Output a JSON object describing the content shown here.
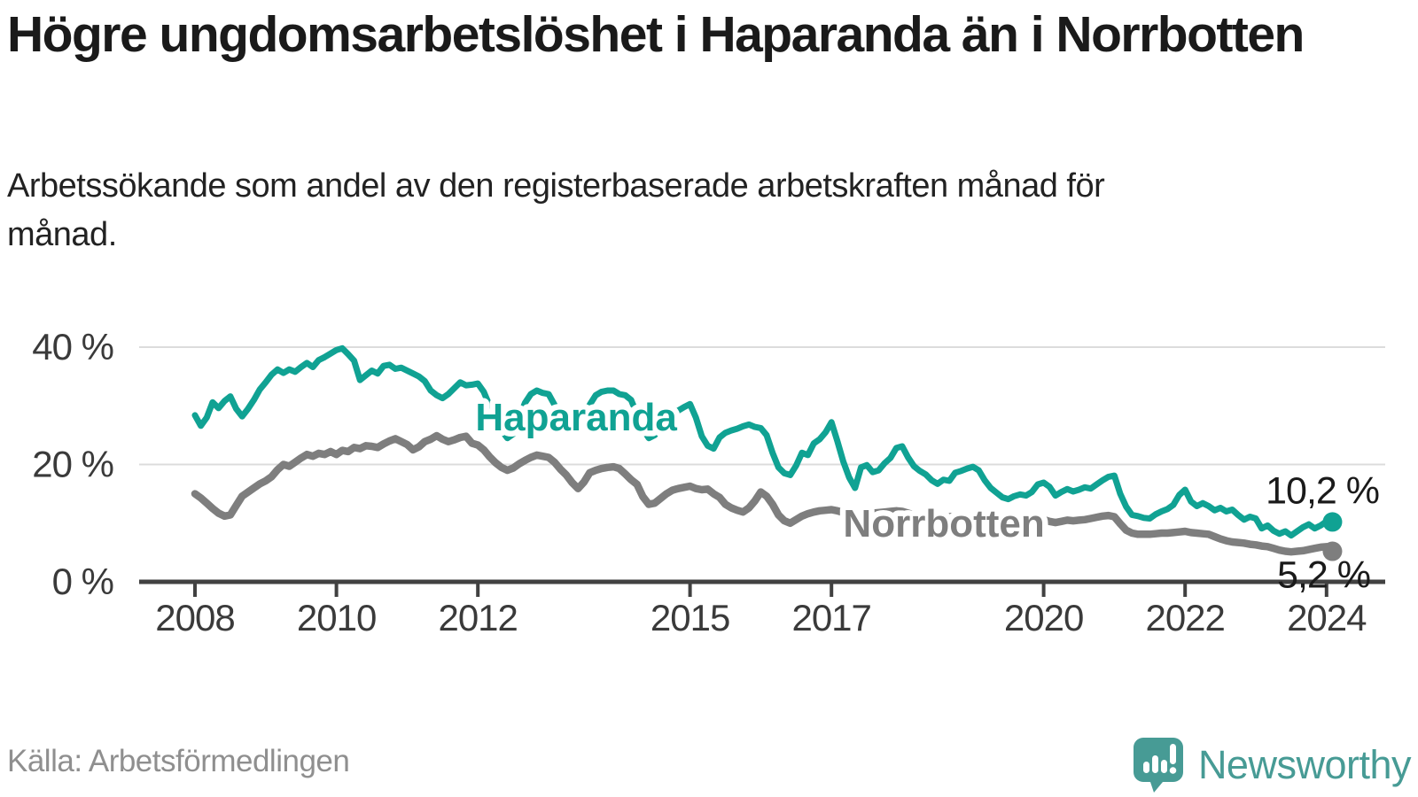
{
  "header": {
    "title": "Högre ungdomsarbetslöshet i Haparanda än i Norrbotten",
    "subtitle": "Arbetssökande som andel av den registerbaserade arbetskraften månad för månad."
  },
  "footer": {
    "source": "Källa: Arbetsförmedlingen",
    "brand": "Newsworthy"
  },
  "colors": {
    "haparanda": "#10a293",
    "norrbotten": "#7e7e7e",
    "axis_line": "#414141",
    "grid": "#dcdcdc",
    "axis_text": "#3a3a3a",
    "end_label": "#1a1a1a",
    "brand_teal": "#479b95"
  },
  "chart_data": {
    "type": "line",
    "title": "Högre ungdomsarbetslöshet i Haparanda än i Norrbotten",
    "subtitle": "Arbetssökande som andel av den registerbaserade arbetskraften månad för månad.",
    "unit": "%",
    "grid": true,
    "ylim": [
      0,
      40
    ],
    "xlim": [
      2008,
      2024.25
    ],
    "y_ticks": [
      {
        "label": "40 %",
        "value": 40
      },
      {
        "label": "20 %",
        "value": 20
      },
      {
        "label": "0 %",
        "value": 0
      }
    ],
    "x_ticks": [
      {
        "label": "2008",
        "year": 2008
      },
      {
        "label": "2010",
        "year": 2010
      },
      {
        "label": "2012",
        "year": 2012
      },
      {
        "label": "2015",
        "year": 2015
      },
      {
        "label": "2017",
        "year": 2017
      },
      {
        "label": "2020",
        "year": 2020
      },
      {
        "label": "2022",
        "year": 2022
      },
      {
        "label": "2024",
        "year": 2024
      }
    ],
    "x_start_year": 2008,
    "points_per_year": 12,
    "series": [
      {
        "name": "Norrbotten",
        "color_key": "norrbotten",
        "end_label": "5,2 %",
        "end_value": 5.2,
        "values": [
          15.0,
          14.3,
          13.4,
          12.5,
          11.7,
          11.2,
          11.4,
          13.0,
          14.6,
          15.3,
          16.0,
          16.7,
          17.2,
          17.9,
          19.1,
          20.0,
          19.7,
          20.4,
          21.1,
          21.7,
          21.4,
          21.9,
          21.7,
          22.2,
          21.7,
          22.4,
          22.2,
          22.9,
          22.7,
          23.2,
          23.1,
          22.9,
          23.5,
          24.0,
          24.4,
          23.9,
          23.4,
          22.5,
          23.0,
          23.9,
          24.3,
          24.9,
          24.3,
          23.9,
          24.2,
          24.6,
          24.8,
          23.6,
          23.3,
          22.5,
          21.3,
          20.3,
          19.5,
          19.0,
          19.4,
          20.1,
          20.7,
          21.2,
          21.6,
          21.4,
          21.2,
          20.4,
          19.2,
          18.2,
          16.9,
          15.9,
          17.0,
          18.6,
          19.0,
          19.3,
          19.5,
          19.6,
          19.3,
          18.4,
          17.4,
          16.6,
          14.5,
          13.2,
          13.4,
          14.2,
          15.0,
          15.6,
          15.9,
          16.1,
          16.3,
          15.9,
          15.7,
          15.8,
          15.0,
          14.4,
          13.2,
          12.6,
          12.2,
          11.9,
          12.6,
          13.8,
          15.3,
          14.6,
          13.2,
          11.4,
          10.4,
          10.0,
          10.6,
          11.2,
          11.6,
          11.9,
          12.1,
          12.2,
          12.3,
          12.1,
          11.8,
          11.5,
          11.3,
          11.4,
          11.6,
          11.7,
          11.8,
          11.9,
          12.0,
          12.1,
          12.0,
          11.7,
          11.4,
          11.1,
          10.9,
          10.8,
          10.9,
          11.0,
          11.1,
          11.2,
          11.3,
          11.3,
          11.2,
          11.0,
          10.8,
          10.6,
          10.4,
          10.3,
          10.4,
          10.5,
          10.6,
          10.6,
          10.7,
          10.7,
          10.6,
          10.3,
          10.1,
          10.3,
          10.5,
          10.4,
          10.5,
          10.6,
          10.8,
          11.0,
          11.2,
          11.3,
          11.1,
          9.9,
          8.8,
          8.3,
          8.1,
          8.1,
          8.1,
          8.2,
          8.3,
          8.3,
          8.4,
          8.5,
          8.6,
          8.4,
          8.3,
          8.2,
          8.1,
          7.7,
          7.3,
          7.0,
          6.8,
          6.7,
          6.6,
          6.4,
          6.3,
          6.1,
          6.0,
          5.7,
          5.4,
          5.2,
          5.1,
          5.2,
          5.3,
          5.5,
          5.7,
          5.9,
          6.0,
          5.2
        ]
      },
      {
        "name": "Haparanda",
        "color_key": "haparanda",
        "end_label": "10,2 %",
        "end_value": 10.2,
        "values": [
          28.4,
          26.6,
          28.0,
          30.6,
          29.6,
          30.8,
          31.6,
          29.5,
          28.2,
          29.5,
          31.0,
          32.8,
          34.0,
          35.3,
          36.2,
          35.6,
          36.2,
          35.8,
          36.6,
          37.3,
          36.6,
          37.8,
          38.3,
          38.9,
          39.5,
          39.8,
          38.8,
          37.7,
          34.4,
          35.2,
          36.0,
          35.5,
          36.8,
          37.0,
          36.3,
          36.5,
          36.0,
          35.5,
          35.0,
          34.2,
          32.6,
          31.8,
          31.3,
          32.0,
          33.0,
          34.0,
          33.5,
          33.6,
          33.8,
          32.4,
          30.0,
          27.5,
          25.8,
          24.5,
          25.2,
          28.0,
          30.5,
          32.0,
          32.6,
          32.2,
          32.0,
          30.2,
          28.3,
          27.0,
          26.3,
          27.2,
          28.4,
          30.2,
          31.8,
          32.4,
          32.6,
          32.6,
          32.0,
          31.8,
          31.0,
          28.5,
          26.0,
          24.5,
          25.0,
          26.5,
          27.8,
          28.8,
          29.2,
          29.8,
          30.3,
          28.0,
          24.8,
          23.2,
          22.7,
          24.6,
          25.4,
          25.8,
          26.1,
          26.5,
          26.8,
          26.4,
          26.2,
          25.0,
          22.0,
          19.5,
          18.5,
          18.2,
          19.8,
          22.0,
          21.6,
          23.6,
          24.3,
          25.5,
          27.2,
          24.0,
          20.5,
          17.8,
          16.0,
          19.5,
          19.9,
          18.7,
          19.0,
          20.2,
          21.1,
          22.8,
          23.1,
          21.2,
          19.7,
          18.9,
          18.3,
          17.3,
          16.7,
          17.4,
          17.2,
          18.6,
          18.9,
          19.3,
          19.6,
          19.0,
          17.3,
          16.0,
          15.2,
          14.4,
          14.1,
          14.6,
          14.9,
          14.7,
          15.3,
          16.6,
          16.9,
          16.2,
          14.7,
          15.3,
          15.8,
          15.4,
          15.7,
          16.1,
          15.9,
          16.6,
          17.3,
          17.9,
          18.1,
          15.0,
          12.8,
          11.4,
          11.2,
          10.9,
          10.8,
          11.5,
          12.0,
          12.4,
          13.1,
          14.8,
          15.7,
          13.7,
          12.9,
          13.4,
          12.9,
          12.2,
          12.6,
          12.0,
          12.3,
          11.4,
          10.6,
          11.1,
          10.8,
          9.1,
          9.6,
          8.7,
          8.2,
          8.6,
          7.9,
          8.6,
          9.3,
          9.8,
          9.1,
          9.6,
          10.3,
          10.2
        ]
      }
    ],
    "series_labels": [
      {
        "text": "Haparanda",
        "color_key": "haparanda",
        "year": 2013.39,
        "value": 25.8
      },
      {
        "text": "Norrbotten",
        "color_key": "norrbotten",
        "year": 2018.59,
        "value": 7.7
      }
    ],
    "legend_position": "inline"
  }
}
